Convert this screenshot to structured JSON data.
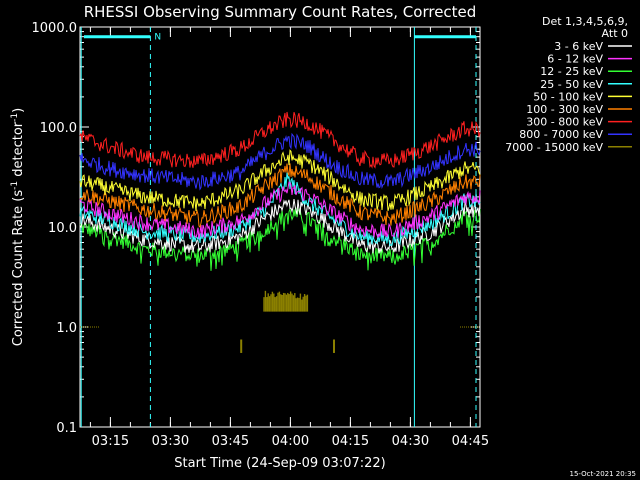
{
  "chart_data": {
    "type": "line",
    "title": "RHESSI Observing Summary Count Rates, Corrected",
    "xlabel": "Start Time (24-Sep-09 03:07:22)",
    "ylabel": {
      "prefix": "Corrected Count Rate (s",
      "sup1": "-1",
      "mid": " detector",
      "sup2": "-1",
      "suffix": ")"
    },
    "yscale": "log",
    "ylim": [
      0.1,
      1000
    ],
    "xlim_minutes": [
      0,
      100
    ],
    "x_units": "minutes after 03:07:22",
    "y_ticks": [
      {
        "value": 1000,
        "label": "1000.0"
      },
      {
        "value": 100,
        "label": "100.0"
      },
      {
        "value": 10,
        "label": "10.0"
      },
      {
        "value": 1,
        "label": "1.0"
      },
      {
        "value": 0.1,
        "label": "0.1"
      }
    ],
    "x_ticks": [
      {
        "minute": 7.6,
        "label": "03:15"
      },
      {
        "minute": 22.6,
        "label": "03:30"
      },
      {
        "minute": 37.6,
        "label": "03:45"
      },
      {
        "minute": 52.6,
        "label": "04:00"
      },
      {
        "minute": 67.6,
        "label": "04:15"
      },
      {
        "minute": 82.6,
        "label": "04:30"
      },
      {
        "minute": 97.6,
        "label": "04:45"
      }
    ],
    "legend": {
      "placement": "top-right, outside plot",
      "header": [
        "Det 1,3,4,5,6,9,",
        "Att 0"
      ]
    },
    "series": [
      {
        "name": "3 - 6 keV",
        "color": "#ffffff",
        "x": [
          0,
          8,
          16,
          30,
          40,
          47,
          52,
          57,
          62,
          70,
          78,
          88,
          96
        ],
        "y": [
          12,
          9.5,
          7.5,
          6.2,
          8,
          13,
          17,
          15,
          11,
          6.6,
          6.2,
          9,
          15
        ]
      },
      {
        "name": "6 - 12 keV",
        "color": "#ff33ff",
        "x": [
          0,
          8,
          16,
          30,
          40,
          47,
          52,
          57,
          62,
          70,
          78,
          88,
          96
        ],
        "y": [
          17,
          13.5,
          11,
          9,
          11.5,
          18,
          24,
          21,
          15,
          9.5,
          8.8,
          13,
          20
        ]
      },
      {
        "name": "12 - 25 keV",
        "color": "#33ff33",
        "x": [
          0,
          8,
          16,
          30,
          40,
          47,
          52,
          57,
          62,
          70,
          78,
          88,
          96
        ],
        "y": [
          10,
          8,
          6,
          5.2,
          6.5,
          10,
          14,
          12,
          8.5,
          5.3,
          5,
          7,
          13
        ]
      },
      {
        "name": "25 - 50 keV",
        "color": "#33ffff",
        "x": [
          0,
          8,
          16,
          30,
          40,
          47,
          52,
          57,
          62,
          70,
          78,
          88,
          96
        ],
        "y": [
          14,
          11.5,
          9,
          8,
          10,
          16,
          30,
          18,
          13,
          8,
          7.5,
          11,
          18
        ]
      },
      {
        "name": "50 - 100 keV",
        "color": "#ffff33",
        "x": [
          0,
          8,
          16,
          30,
          40,
          47,
          52,
          57,
          62,
          70,
          78,
          88,
          96
        ],
        "y": [
          29,
          24,
          20,
          17,
          23,
          38,
          50,
          44,
          32,
          19,
          17,
          25,
          38
        ]
      },
      {
        "name": "100 - 300 keV",
        "color": "#ff8000",
        "x": [
          0,
          8,
          16,
          30,
          40,
          47,
          52,
          57,
          62,
          70,
          78,
          88,
          96
        ],
        "y": [
          22,
          18,
          15,
          12,
          16,
          27,
          37,
          32,
          23,
          14,
          12,
          18,
          28
        ]
      },
      {
        "name": "300 - 800 keV",
        "color": "#ff2020",
        "x": [
          0,
          8,
          16,
          30,
          40,
          47,
          52,
          57,
          62,
          70,
          78,
          88,
          96
        ],
        "y": [
          80,
          62,
          50,
          45,
          60,
          95,
          120,
          110,
          80,
          48,
          45,
          65,
          95
        ]
      },
      {
        "name": "800 - 7000 keV",
        "color": "#3333ff",
        "x": [
          0,
          8,
          16,
          30,
          40,
          47,
          52,
          57,
          62,
          70,
          78,
          88,
          96
        ],
        "y": [
          48,
          38,
          33,
          28,
          35,
          58,
          75,
          65,
          45,
          30,
          28,
          40,
          60
        ]
      },
      {
        "name": "7000 - 15000 keV",
        "color": "#8b8000",
        "x": [
          0,
          4,
          15,
          40,
          55,
          98,
          100
        ],
        "y": [
          1,
          1,
          0.7,
          0.7,
          2,
          1,
          1
        ],
        "segments": [
          {
            "x": [
              0,
              5
            ],
            "y": [
              1,
              1
            ]
          },
          {
            "x": [
              46,
              57
            ],
            "y": [
              1.5,
              2.2
            ]
          },
          {
            "x": [
              40.3,
              41
            ],
            "y": [
              0.55,
              0.75
            ]
          },
          {
            "x": [
              63.5,
              64.2
            ],
            "y": [
              0.55,
              0.75
            ]
          },
          {
            "x": [
              95,
              100
            ],
            "y": [
              1,
              1
            ]
          }
        ]
      }
    ],
    "annotations": {
      "markers": [
        {
          "x0": 1,
          "x1": 17.6,
          "y": 800,
          "label": "N",
          "color": "#33ffff"
        },
        {
          "x0": 83.6,
          "x1": 99,
          "y": 800,
          "label": "",
          "color": "#33ffff"
        }
      ],
      "dashed_lines_minutes": [
        17.6,
        99
      ],
      "solid_lines_minutes": [
        0.3,
        83.6
      ]
    }
  },
  "footer": {
    "timestamp": "15-Oct-2021 20:35"
  }
}
